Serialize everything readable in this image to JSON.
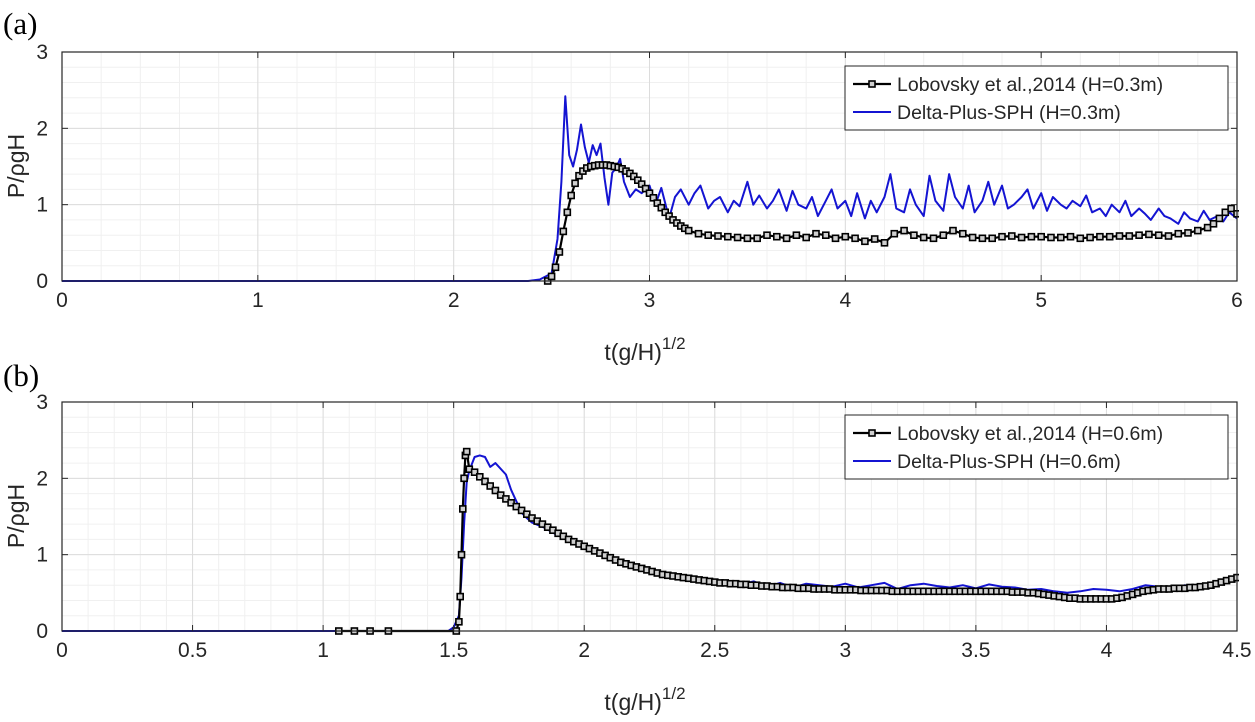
{
  "chart_data": [
    {
      "type": "line",
      "panel_label": "(a)",
      "xlabel_base": "t(g/H)",
      "xlabel_exp": "1/2",
      "ylabel": "P/ρgH",
      "xlim": [
        0,
        6
      ],
      "ylim": [
        0,
        3
      ],
      "xticks": [
        0,
        1,
        2,
        3,
        4,
        5,
        6
      ],
      "xtick_labels": [
        "0",
        "1",
        "2",
        "3",
        "4",
        "5",
        "6"
      ],
      "yticks": [
        0,
        1,
        2,
        3
      ],
      "ytick_labels": [
        "0",
        "1",
        "2",
        "3"
      ],
      "minor_x_step": 0.2,
      "minor_y_step": 0.2,
      "grid": true,
      "legend_position": "top-right",
      "series": [
        {
          "name": "Lobovsky et al.,2014 (H=0.3m)",
          "color": "#000000",
          "marker": "square",
          "x": [
            2.48,
            2.5,
            2.52,
            2.54,
            2.56,
            2.58,
            2.6,
            2.62,
            2.64,
            2.66,
            2.68,
            2.7,
            2.72,
            2.74,
            2.76,
            2.78,
            2.8,
            2.82,
            2.84,
            2.86,
            2.88,
            2.9,
            2.92,
            2.94,
            2.96,
            2.98,
            3.0,
            3.02,
            3.04,
            3.06,
            3.08,
            3.1,
            3.12,
            3.14,
            3.16,
            3.18,
            3.2,
            3.25,
            3.3,
            3.35,
            3.4,
            3.45,
            3.5,
            3.55,
            3.6,
            3.65,
            3.7,
            3.75,
            3.8,
            3.85,
            3.9,
            3.95,
            4.0,
            4.05,
            4.1,
            4.15,
            4.2,
            4.25,
            4.3,
            4.35,
            4.4,
            4.45,
            4.5,
            4.55,
            4.6,
            4.65,
            4.7,
            4.75,
            4.8,
            4.85,
            4.9,
            4.95,
            5.0,
            5.05,
            5.1,
            5.15,
            5.2,
            5.25,
            5.3,
            5.35,
            5.4,
            5.45,
            5.5,
            5.55,
            5.6,
            5.65,
            5.7,
            5.75,
            5.8,
            5.85,
            5.88,
            5.91,
            5.94,
            5.97,
            6.0
          ],
          "y": [
            0.0,
            0.06,
            0.18,
            0.38,
            0.65,
            0.9,
            1.12,
            1.28,
            1.38,
            1.44,
            1.48,
            1.5,
            1.51,
            1.52,
            1.52,
            1.52,
            1.51,
            1.5,
            1.49,
            1.47,
            1.44,
            1.41,
            1.37,
            1.32,
            1.27,
            1.21,
            1.15,
            1.09,
            1.02,
            0.96,
            0.9,
            0.85,
            0.8,
            0.76,
            0.72,
            0.69,
            0.66,
            0.62,
            0.6,
            0.59,
            0.58,
            0.57,
            0.56,
            0.56,
            0.6,
            0.58,
            0.56,
            0.6,
            0.57,
            0.62,
            0.6,
            0.56,
            0.58,
            0.56,
            0.52,
            0.55,
            0.5,
            0.62,
            0.66,
            0.6,
            0.57,
            0.56,
            0.6,
            0.66,
            0.62,
            0.57,
            0.56,
            0.56,
            0.58,
            0.59,
            0.57,
            0.58,
            0.58,
            0.57,
            0.57,
            0.58,
            0.56,
            0.57,
            0.58,
            0.58,
            0.59,
            0.59,
            0.6,
            0.61,
            0.6,
            0.59,
            0.62,
            0.63,
            0.66,
            0.7,
            0.75,
            0.82,
            0.9,
            0.95,
            0.88
          ]
        },
        {
          "name": "Delta-Plus-SPH (H=0.3m)",
          "color": "#1414d2",
          "marker": "none",
          "x": [
            0.0,
            2.38,
            2.44,
            2.5,
            2.53,
            2.55,
            2.57,
            2.59,
            2.61,
            2.63,
            2.65,
            2.67,
            2.69,
            2.71,
            2.73,
            2.75,
            2.77,
            2.79,
            2.81,
            2.83,
            2.85,
            2.87,
            2.9,
            2.93,
            2.96,
            3.0,
            3.03,
            3.06,
            3.1,
            3.13,
            3.16,
            3.2,
            3.23,
            3.26,
            3.3,
            3.33,
            3.36,
            3.4,
            3.43,
            3.46,
            3.5,
            3.53,
            3.56,
            3.6,
            3.63,
            3.66,
            3.7,
            3.73,
            3.76,
            3.8,
            3.83,
            3.86,
            3.9,
            3.93,
            3.96,
            4.0,
            4.03,
            4.06,
            4.1,
            4.13,
            4.16,
            4.2,
            4.23,
            4.26,
            4.3,
            4.33,
            4.36,
            4.4,
            4.43,
            4.46,
            4.5,
            4.53,
            4.56,
            4.6,
            4.63,
            4.66,
            4.7,
            4.73,
            4.76,
            4.8,
            4.83,
            4.86,
            4.9,
            4.93,
            4.96,
            5.0,
            5.03,
            5.06,
            5.1,
            5.13,
            5.16,
            5.2,
            5.23,
            5.26,
            5.3,
            5.33,
            5.36,
            5.4,
            5.43,
            5.46,
            5.5,
            5.53,
            5.56,
            5.6,
            5.63,
            5.66,
            5.7,
            5.73,
            5.76,
            5.8,
            5.83,
            5.86,
            5.9,
            5.93,
            5.96,
            6.0
          ],
          "y": [
            0.0,
            0.0,
            0.02,
            0.1,
            0.55,
            1.3,
            2.42,
            1.65,
            1.5,
            1.72,
            2.05,
            1.75,
            1.55,
            1.78,
            1.65,
            1.8,
            1.35,
            1.0,
            1.42,
            1.48,
            1.6,
            1.3,
            1.1,
            1.2,
            1.15,
            1.25,
            1.0,
            1.22,
            0.82,
            1.1,
            1.2,
            1.0,
            1.15,
            1.25,
            0.95,
            1.05,
            1.1,
            0.9,
            1.05,
            0.98,
            1.3,
            1.0,
            1.12,
            0.95,
            1.05,
            1.2,
            0.92,
            1.18,
            1.0,
            0.95,
            1.1,
            0.85,
            1.05,
            1.2,
            0.95,
            1.05,
            0.85,
            1.15,
            0.82,
            1.05,
            0.9,
            1.1,
            1.4,
            0.95,
            0.9,
            1.2,
            1.0,
            0.85,
            1.38,
            1.05,
            0.92,
            1.4,
            1.1,
            0.95,
            1.25,
            0.9,
            1.05,
            1.3,
            1.0,
            1.25,
            0.95,
            1.0,
            1.1,
            1.2,
            0.95,
            1.15,
            0.92,
            1.1,
            1.0,
            0.95,
            1.05,
            0.98,
            1.12,
            0.9,
            0.95,
            0.85,
            1.0,
            0.9,
            1.05,
            0.85,
            0.95,
            0.88,
            0.8,
            0.95,
            0.85,
            0.82,
            0.75,
            0.9,
            0.82,
            0.78,
            0.92,
            0.8,
            0.85,
            0.78,
            0.9,
            0.82
          ]
        }
      ]
    },
    {
      "type": "line",
      "panel_label": "(b)",
      "xlabel_base": "t(g/H)",
      "xlabel_exp": "1/2",
      "ylabel": "P/ρgH",
      "xlim": [
        0,
        4.5
      ],
      "ylim": [
        0,
        3
      ],
      "xticks": [
        0,
        0.5,
        1,
        1.5,
        2,
        2.5,
        3,
        3.5,
        4,
        4.5
      ],
      "xtick_labels": [
        "0",
        "0.5",
        "1",
        "1.5",
        "2",
        "2.5",
        "3",
        "3.5",
        "4",
        "4.5"
      ],
      "yticks": [
        0,
        1,
        2,
        3
      ],
      "ytick_labels": [
        "0",
        "1",
        "2",
        "3"
      ],
      "minor_x_step": 0.1,
      "minor_y_step": 0.2,
      "grid": true,
      "legend_position": "top-right",
      "series": [
        {
          "name": "Lobovsky et al.,2014 (H=0.6m)",
          "color": "#000000",
          "marker": "square",
          "x": [
            1.06,
            1.12,
            1.18,
            1.25,
            1.51,
            1.52,
            1.525,
            1.53,
            1.535,
            1.54,
            1.545,
            1.55,
            1.56,
            1.58,
            1.6,
            1.62,
            1.64,
            1.66,
            1.68,
            1.7,
            1.72,
            1.74,
            1.76,
            1.78,
            1.8,
            1.82,
            1.84,
            1.86,
            1.88,
            1.9,
            1.92,
            1.94,
            1.96,
            1.98,
            2.0,
            2.02,
            2.04,
            2.06,
            2.08,
            2.1,
            2.12,
            2.14,
            2.16,
            2.18,
            2.2,
            2.22,
            2.24,
            2.26,
            2.28,
            2.3,
            2.32,
            2.34,
            2.36,
            2.38,
            2.4,
            2.42,
            2.44,
            2.46,
            2.48,
            2.5,
            2.52,
            2.54,
            2.56,
            2.58,
            2.6,
            2.62,
            2.64,
            2.66,
            2.68,
            2.7,
            2.72,
            2.74,
            2.76,
            2.78,
            2.8,
            2.82,
            2.84,
            2.86,
            2.88,
            2.9,
            2.92,
            2.94,
            2.96,
            2.98,
            3.0,
            3.02,
            3.04,
            3.06,
            3.08,
            3.1,
            3.12,
            3.14,
            3.16,
            3.18,
            3.2,
            3.22,
            3.24,
            3.26,
            3.28,
            3.3,
            3.32,
            3.34,
            3.36,
            3.38,
            3.4,
            3.42,
            3.44,
            3.46,
            3.48,
            3.5,
            3.52,
            3.54,
            3.56,
            3.58,
            3.6,
            3.62,
            3.64,
            3.66,
            3.68,
            3.7,
            3.72,
            3.74,
            3.76,
            3.78,
            3.8,
            3.82,
            3.84,
            3.86,
            3.88,
            3.9,
            3.92,
            3.94,
            3.96,
            3.98,
            4.0,
            4.02,
            4.04,
            4.06,
            4.08,
            4.1,
            4.12,
            4.14,
            4.16,
            4.18,
            4.2,
            4.22,
            4.24,
            4.26,
            4.28,
            4.3,
            4.32,
            4.34,
            4.36,
            4.38,
            4.4,
            4.42,
            4.44,
            4.46,
            4.48,
            4.5
          ],
          "y": [
            0.0,
            0.0,
            0.0,
            0.0,
            0.0,
            0.12,
            0.45,
            1.0,
            1.6,
            2.0,
            2.3,
            2.35,
            2.12,
            2.08,
            2.02,
            1.96,
            1.9,
            1.84,
            1.78,
            1.73,
            1.68,
            1.63,
            1.58,
            1.53,
            1.48,
            1.44,
            1.4,
            1.36,
            1.32,
            1.28,
            1.24,
            1.2,
            1.17,
            1.14,
            1.11,
            1.08,
            1.05,
            1.02,
            0.99,
            0.96,
            0.93,
            0.9,
            0.88,
            0.86,
            0.84,
            0.82,
            0.8,
            0.78,
            0.76,
            0.74,
            0.73,
            0.72,
            0.71,
            0.7,
            0.69,
            0.68,
            0.67,
            0.66,
            0.65,
            0.64,
            0.63,
            0.63,
            0.62,
            0.62,
            0.61,
            0.61,
            0.6,
            0.6,
            0.59,
            0.59,
            0.58,
            0.58,
            0.57,
            0.57,
            0.57,
            0.56,
            0.56,
            0.56,
            0.55,
            0.55,
            0.55,
            0.55,
            0.54,
            0.54,
            0.54,
            0.54,
            0.54,
            0.53,
            0.53,
            0.53,
            0.53,
            0.53,
            0.53,
            0.52,
            0.52,
            0.52,
            0.52,
            0.52,
            0.52,
            0.52,
            0.52,
            0.52,
            0.52,
            0.52,
            0.52,
            0.52,
            0.52,
            0.52,
            0.52,
            0.52,
            0.52,
            0.52,
            0.52,
            0.52,
            0.52,
            0.52,
            0.51,
            0.51,
            0.51,
            0.5,
            0.5,
            0.49,
            0.48,
            0.47,
            0.46,
            0.45,
            0.44,
            0.43,
            0.43,
            0.42,
            0.42,
            0.42,
            0.42,
            0.42,
            0.42,
            0.42,
            0.43,
            0.44,
            0.46,
            0.48,
            0.5,
            0.52,
            0.53,
            0.54,
            0.55,
            0.55,
            0.55,
            0.56,
            0.56,
            0.56,
            0.57,
            0.57,
            0.58,
            0.59,
            0.6,
            0.62,
            0.64,
            0.66,
            0.68,
            0.7
          ]
        },
        {
          "name": "Delta-Plus-SPH (H=0.6m)",
          "color": "#1414d2",
          "marker": "none",
          "x": [
            0.0,
            1.48,
            1.5,
            1.52,
            1.53,
            1.54,
            1.55,
            1.56,
            1.58,
            1.6,
            1.62,
            1.64,
            1.66,
            1.7,
            1.72,
            1.74,
            1.76,
            1.78,
            1.8,
            1.85,
            1.9,
            1.95,
            2.0,
            2.05,
            2.1,
            2.15,
            2.2,
            2.25,
            2.3,
            2.35,
            2.4,
            2.45,
            2.5,
            2.55,
            2.6,
            2.65,
            2.7,
            2.75,
            2.8,
            2.85,
            2.9,
            2.95,
            3.0,
            3.05,
            3.1,
            3.15,
            3.2,
            3.25,
            3.3,
            3.35,
            3.4,
            3.45,
            3.5,
            3.55,
            3.6,
            3.65,
            3.7,
            3.75,
            3.8,
            3.85,
            3.9,
            3.95,
            4.0,
            4.05,
            4.1,
            4.15,
            4.2,
            4.25,
            4.3,
            4.35,
            4.4,
            4.45,
            4.5
          ],
          "y": [
            0.0,
            0.0,
            0.05,
            0.2,
            0.7,
            1.4,
            1.95,
            2.1,
            2.28,
            2.3,
            2.28,
            2.15,
            2.2,
            2.05,
            1.85,
            1.7,
            1.55,
            1.48,
            1.42,
            1.35,
            1.25,
            1.2,
            1.12,
            1.02,
            0.95,
            0.9,
            0.85,
            0.78,
            0.73,
            0.7,
            0.67,
            0.66,
            0.64,
            0.66,
            0.61,
            0.65,
            0.58,
            0.63,
            0.57,
            0.62,
            0.6,
            0.58,
            0.62,
            0.57,
            0.6,
            0.63,
            0.55,
            0.6,
            0.62,
            0.59,
            0.57,
            0.6,
            0.56,
            0.61,
            0.58,
            0.57,
            0.54,
            0.55,
            0.52,
            0.5,
            0.52,
            0.55,
            0.54,
            0.52,
            0.55,
            0.6,
            0.58,
            0.56,
            0.6,
            0.58,
            0.62,
            0.64,
            0.72
          ]
        }
      ]
    }
  ]
}
